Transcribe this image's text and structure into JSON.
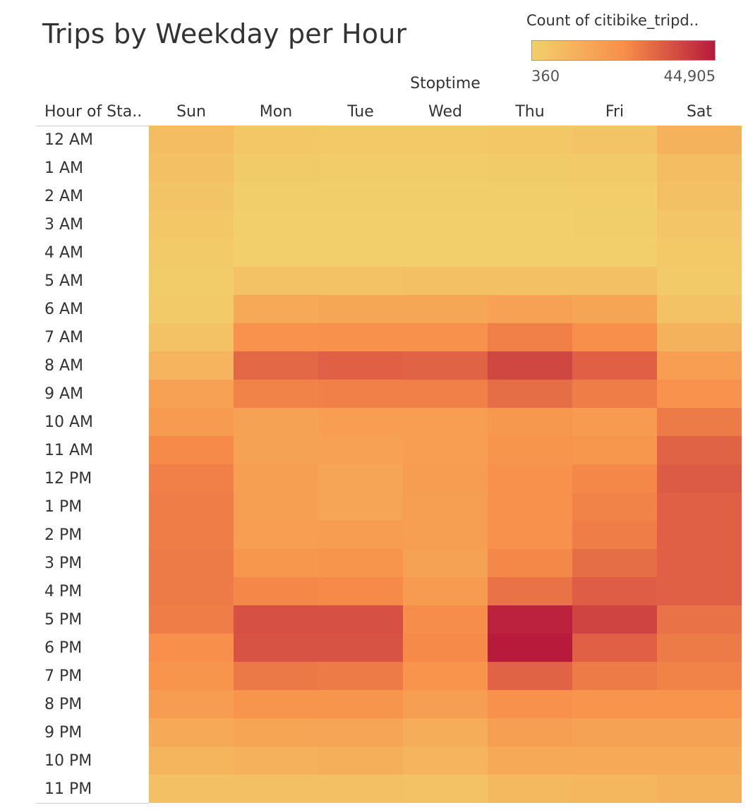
{
  "title": "Trips by Weekday per Hour",
  "legend": {
    "title": "Count of citibike_tripd..",
    "min_label": "360",
    "max_label": "44,905",
    "color_low": "#f2d06b",
    "color_mid": "#f88f4a",
    "color_high": "#b81a3c"
  },
  "column_group_title": "Stoptime",
  "row_header_title": "Hour of Sta..",
  "chart_data": {
    "type": "heatmap",
    "title": "Trips by Weekday per Hour",
    "columns": [
      "Sun",
      "Mon",
      "Tue",
      "Wed",
      "Thu",
      "Fri",
      "Sat"
    ],
    "rows": [
      "12 AM",
      "1 AM",
      "2 AM",
      "3 AM",
      "4 AM",
      "5 AM",
      "6 AM",
      "7 AM",
      "8 AM",
      "9 AM",
      "10 AM",
      "11 AM",
      "12 PM",
      "1 PM",
      "2 PM",
      "3 PM",
      "4 PM",
      "5 PM",
      "6 PM",
      "7 PM",
      "8 PM",
      "9 PM",
      "10 PM",
      "11 PM"
    ],
    "value_range": [
      360,
      44905
    ],
    "values": [
      [
        7000,
        3500,
        3000,
        3000,
        3500,
        4500,
        10500
      ],
      [
        5500,
        2000,
        1800,
        1800,
        2000,
        2500,
        7000
      ],
      [
        4500,
        1200,
        1000,
        1000,
        1200,
        1500,
        5500
      ],
      [
        3500,
        800,
        700,
        700,
        800,
        1000,
        4000
      ],
      [
        2500,
        700,
        600,
        600,
        700,
        800,
        3000
      ],
      [
        1800,
        5000,
        5000,
        5500,
        5500,
        5500,
        2500
      ],
      [
        2500,
        13500,
        14500,
        14500,
        16500,
        15000,
        5000
      ],
      [
        5000,
        21500,
        22000,
        22000,
        25500,
        22500,
        10500
      ],
      [
        10000,
        30000,
        31500,
        31000,
        36500,
        31500,
        17500
      ],
      [
        16500,
        25000,
        25500,
        25500,
        29000,
        26000,
        21500
      ],
      [
        18500,
        16000,
        17500,
        17500,
        19500,
        18500,
        26500
      ],
      [
        23500,
        16000,
        16500,
        17500,
        20500,
        20000,
        31000
      ],
      [
        25500,
        17000,
        15500,
        18000,
        22000,
        24000,
        32500
      ],
      [
        26000,
        17000,
        15500,
        17000,
        22000,
        25000,
        31500
      ],
      [
        26000,
        17500,
        18000,
        17000,
        22000,
        26000,
        31500
      ],
      [
        26500,
        20000,
        20500,
        16000,
        24000,
        29000,
        31500
      ],
      [
        26500,
        24000,
        23500,
        18500,
        28000,
        32000,
        31500
      ],
      [
        26000,
        34500,
        34500,
        23000,
        43500,
        37000,
        28000
      ],
      [
        22500,
        34000,
        34000,
        23500,
        44905,
        31500,
        26500
      ],
      [
        20500,
        27000,
        26500,
        21000,
        31000,
        26500,
        25000
      ],
      [
        18000,
        20500,
        20500,
        17000,
        22000,
        21000,
        21000
      ],
      [
        13500,
        15000,
        15500,
        12500,
        17000,
        16000,
        16000
      ],
      [
        9500,
        11000,
        11500,
        10000,
        13500,
        13500,
        13500
      ],
      [
        5500,
        5500,
        5500,
        5000,
        8500,
        9000,
        10500
      ]
    ]
  }
}
